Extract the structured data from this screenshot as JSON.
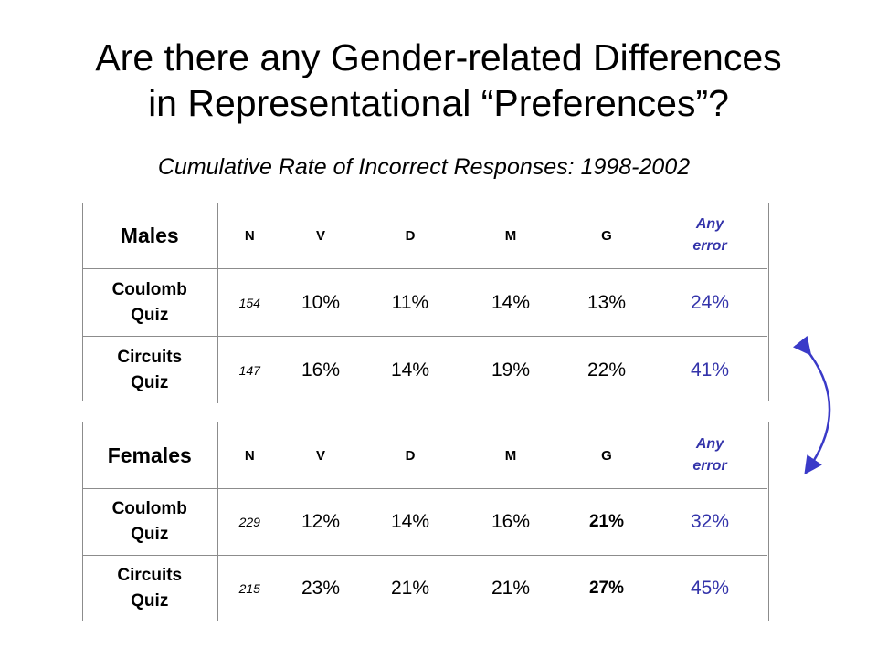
{
  "title_line1": "Are there any Gender-related Differences",
  "title_line2": "in Representational “Preferences”?",
  "subtitle": "Cumulative Rate of Incorrect Responses: 1998-2002",
  "columns": {
    "n": "N",
    "v": "V",
    "d": "D",
    "m": "M",
    "g": "G",
    "any_line1": "Any",
    "any_line2": "error"
  },
  "males": {
    "label": "Males",
    "rows": [
      {
        "quiz_line1": "Coulomb",
        "quiz_line2": "Quiz",
        "n": "154",
        "v": "10%",
        "d": "11%",
        "m": "14%",
        "g": "13%",
        "any": "24%"
      },
      {
        "quiz_line1": "Circuits",
        "quiz_line2": "Quiz",
        "n": "147",
        "v": "16%",
        "d": "14%",
        "m": "19%",
        "g": "22%",
        "any": "41%"
      }
    ]
  },
  "females": {
    "label": "Females",
    "rows": [
      {
        "quiz_line1": "Coulomb",
        "quiz_line2": "Quiz",
        "n": "229",
        "v": "12%",
        "d": "14%",
        "m": "16%",
        "g": "21%",
        "any": "32%"
      },
      {
        "quiz_line1": "Circuits",
        "quiz_line2": "Quiz",
        "n": "215",
        "v": "23%",
        "d": "21%",
        "m": "21%",
        "g": "27%",
        "any": "45%"
      }
    ]
  },
  "colors": {
    "accent_blue": "#3333aa",
    "arrow_blue": "#3a3ac8"
  }
}
